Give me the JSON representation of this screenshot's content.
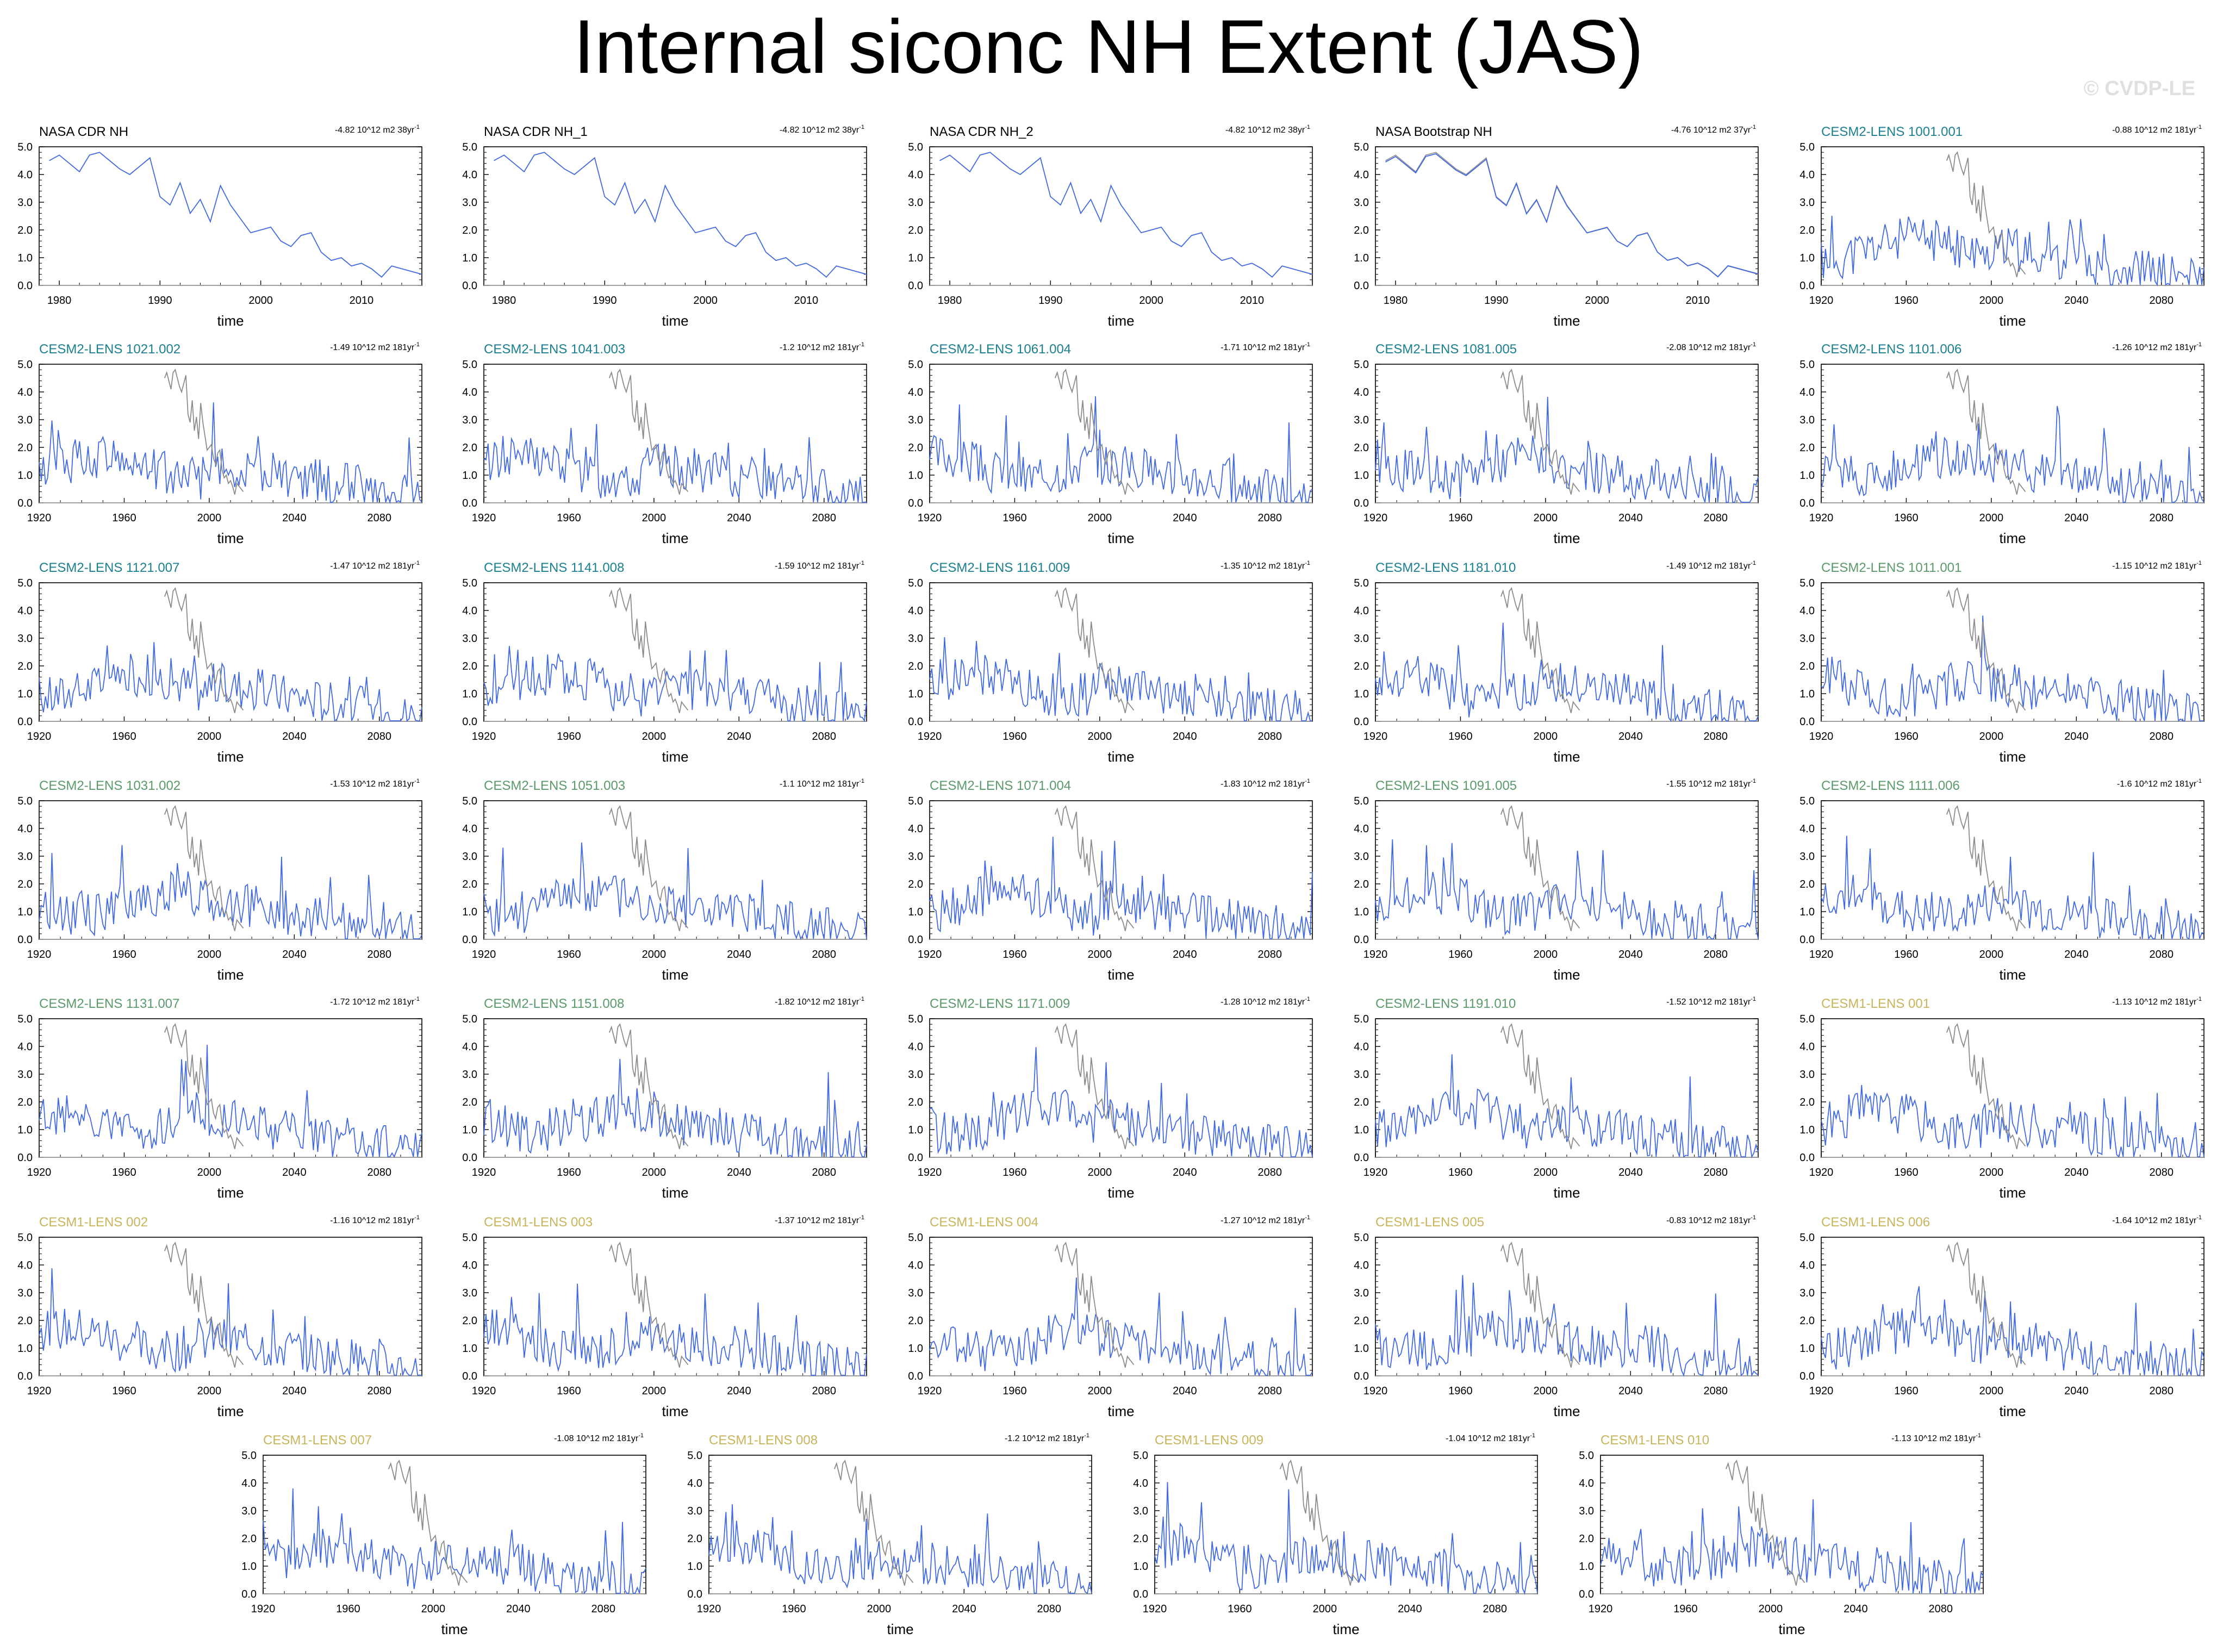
{
  "title": "Internal siconc NH Extent (JAS)",
  "copyright": "© CVDP-LE",
  "colors": {
    "obs_line": "#4169e1",
    "model_line": "#4169e1",
    "overlay_line": "#8c8c8c",
    "zero_line": "#b0b0b0",
    "name_obs": "#000000",
    "name_cesm2_a": "#1a7f8f",
    "name_cesm2_b": "#5a9a6a",
    "name_cesm1": "#c8b45a"
  },
  "chart_data": [
    {
      "type": "line",
      "name": "NASA CDR NH",
      "trend": "-4.82 10^12 m2 38yr",
      "trend_sup": "-1",
      "xlabel": "time",
      "xticks": [
        "1980",
        "1990",
        "2000",
        "2010"
      ],
      "xlim": [
        1978,
        2016
      ],
      "yticks": [
        "0.0",
        "1.0",
        "2.0",
        "3.0",
        "4.0",
        "5.0"
      ],
      "ylim": [
        0,
        5
      ],
      "period": "obs",
      "seed": 1
    },
    {
      "type": "line",
      "name": "NASA CDR NH_1",
      "trend": "-4.82 10^12 m2 38yr",
      "trend_sup": "-1",
      "xlabel": "time",
      "xticks": [
        "1980",
        "1990",
        "2000",
        "2010"
      ],
      "xlim": [
        1978,
        2016
      ],
      "yticks": [
        "0.0",
        "1.0",
        "2.0",
        "3.0",
        "4.0",
        "5.0"
      ],
      "ylim": [
        0,
        5
      ],
      "period": "obs",
      "seed": 1
    },
    {
      "type": "line",
      "name": "NASA CDR NH_2",
      "trend": "-4.82 10^12 m2 38yr",
      "trend_sup": "-1",
      "xlabel": "time",
      "xticks": [
        "1980",
        "1990",
        "2000",
        "2010"
      ],
      "xlim": [
        1978,
        2016
      ],
      "yticks": [
        "0.0",
        "1.0",
        "2.0",
        "3.0",
        "4.0",
        "5.0"
      ],
      "ylim": [
        0,
        5
      ],
      "period": "obs",
      "seed": 1
    },
    {
      "type": "line",
      "name": "NASA Bootstrap NH",
      "trend": "-4.76 10^12 m2 37yr",
      "trend_sup": "-1",
      "xlabel": "time",
      "xticks": [
        "1980",
        "1990",
        "2000",
        "2010"
      ],
      "xlim": [
        1978,
        2016
      ],
      "yticks": [
        "0.0",
        "1.0",
        "2.0",
        "3.0",
        "4.0",
        "5.0"
      ],
      "ylim": [
        0,
        5
      ],
      "period": "obs",
      "seed": 2
    },
    {
      "type": "line",
      "name": "CESM2-LENS 1001.001",
      "trend": "-0.88 10^12 m2 181yr",
      "trend_sup": "-1",
      "group": "cesm2a",
      "seed": 11
    },
    {
      "type": "line",
      "name": "CESM2-LENS 1021.002",
      "trend": "-1.49 10^12 m2 181yr",
      "trend_sup": "-1",
      "group": "cesm2a",
      "seed": 12
    },
    {
      "type": "line",
      "name": "CESM2-LENS 1041.003",
      "trend": "-1.2 10^12 m2 181yr",
      "trend_sup": "-1",
      "group": "cesm2a",
      "seed": 13
    },
    {
      "type": "line",
      "name": "CESM2-LENS 1061.004",
      "trend": "-1.71 10^12 m2 181yr",
      "trend_sup": "-1",
      "group": "cesm2a",
      "seed": 14
    },
    {
      "type": "line",
      "name": "CESM2-LENS 1081.005",
      "trend": "-2.08 10^12 m2 181yr",
      "trend_sup": "-1",
      "group": "cesm2a",
      "seed": 15
    },
    {
      "type": "line",
      "name": "CESM2-LENS 1101.006",
      "trend": "-1.26 10^12 m2 181yr",
      "trend_sup": "-1",
      "group": "cesm2a",
      "seed": 16
    },
    {
      "type": "line",
      "name": "CESM2-LENS 1121.007",
      "trend": "-1.47 10^12 m2 181yr",
      "trend_sup": "-1",
      "group": "cesm2a",
      "seed": 17
    },
    {
      "type": "line",
      "name": "CESM2-LENS 1141.008",
      "trend": "-1.59 10^12 m2 181yr",
      "trend_sup": "-1",
      "group": "cesm2a",
      "seed": 18
    },
    {
      "type": "line",
      "name": "CESM2-LENS 1161.009",
      "trend": "-1.35 10^12 m2 181yr",
      "trend_sup": "-1",
      "group": "cesm2a",
      "seed": 19
    },
    {
      "type": "line",
      "name": "CESM2-LENS 1181.010",
      "trend": "-1.49 10^12 m2 181yr",
      "trend_sup": "-1",
      "group": "cesm2a",
      "seed": 20
    },
    {
      "type": "line",
      "name": "CESM2-LENS 1011.001",
      "trend": "-1.15 10^12 m2 181yr",
      "trend_sup": "-1",
      "group": "cesm2b",
      "seed": 21
    },
    {
      "type": "line",
      "name": "CESM2-LENS 1031.002",
      "trend": "-1.53 10^12 m2 181yr",
      "trend_sup": "-1",
      "group": "cesm2b",
      "seed": 22
    },
    {
      "type": "line",
      "name": "CESM2-LENS 1051.003",
      "trend": "-1.1 10^12 m2 181yr",
      "trend_sup": "-1",
      "group": "cesm2b",
      "seed": 23
    },
    {
      "type": "line",
      "name": "CESM2-LENS 1071.004",
      "trend": "-1.83 10^12 m2 181yr",
      "trend_sup": "-1",
      "group": "cesm2b",
      "seed": 24
    },
    {
      "type": "line",
      "name": "CESM2-LENS 1091.005",
      "trend": "-1.55 10^12 m2 181yr",
      "trend_sup": "-1",
      "group": "cesm2b",
      "seed": 25
    },
    {
      "type": "line",
      "name": "CESM2-LENS 1111.006",
      "trend": "-1.6 10^12 m2 181yr",
      "trend_sup": "-1",
      "group": "cesm2b",
      "seed": 26
    },
    {
      "type": "line",
      "name": "CESM2-LENS 1131.007",
      "trend": "-1.72 10^12 m2 181yr",
      "trend_sup": "-1",
      "group": "cesm2b",
      "seed": 27
    },
    {
      "type": "line",
      "name": "CESM2-LENS 1151.008",
      "trend": "-1.82 10^12 m2 181yr",
      "trend_sup": "-1",
      "group": "cesm2b",
      "seed": 28
    },
    {
      "type": "line",
      "name": "CESM2-LENS 1171.009",
      "trend": "-1.28 10^12 m2 181yr",
      "trend_sup": "-1",
      "group": "cesm2b",
      "seed": 29
    },
    {
      "type": "line",
      "name": "CESM2-LENS 1191.010",
      "trend": "-1.52 10^12 m2 181yr",
      "trend_sup": "-1",
      "group": "cesm2b",
      "seed": 30
    },
    {
      "type": "line",
      "name": "CESM1-LENS 001",
      "trend": "-1.13 10^12 m2 181yr",
      "trend_sup": "-1",
      "group": "cesm1",
      "seed": 31
    },
    {
      "type": "line",
      "name": "CESM1-LENS 002",
      "trend": "-1.16 10^12 m2 181yr",
      "trend_sup": "-1",
      "group": "cesm1",
      "seed": 32
    },
    {
      "type": "line",
      "name": "CESM1-LENS 003",
      "trend": "-1.37 10^12 m2 181yr",
      "trend_sup": "-1",
      "group": "cesm1",
      "seed": 33
    },
    {
      "type": "line",
      "name": "CESM1-LENS 004",
      "trend": "-1.27 10^12 m2 181yr",
      "trend_sup": "-1",
      "group": "cesm1",
      "seed": 34
    },
    {
      "type": "line",
      "name": "CESM1-LENS 005",
      "trend": "-0.83 10^12 m2 181yr",
      "trend_sup": "-1",
      "group": "cesm1",
      "seed": 35
    },
    {
      "type": "line",
      "name": "CESM1-LENS 006",
      "trend": "-1.64 10^12 m2 181yr",
      "trend_sup": "-1",
      "group": "cesm1",
      "seed": 36
    },
    {
      "type": "line",
      "name": "CESM1-LENS 007",
      "trend": "-1.08 10^12 m2 181yr",
      "trend_sup": "-1",
      "group": "cesm1",
      "seed": 37
    },
    {
      "type": "line",
      "name": "CESM1-LENS 008",
      "trend": "-1.2 10^12 m2 181yr",
      "trend_sup": "-1",
      "group": "cesm1",
      "seed": 38
    },
    {
      "type": "line",
      "name": "CESM1-LENS 009",
      "trend": "-1.04 10^12 m2 181yr",
      "trend_sup": "-1",
      "group": "cesm1",
      "seed": 39
    },
    {
      "type": "line",
      "name": "CESM1-LENS 010",
      "trend": "-1.13 10^12 m2 181yr",
      "trend_sup": "-1",
      "group": "cesm1",
      "seed": 40
    }
  ],
  "model_axes": {
    "xlabel": "time",
    "xticks": [
      "1920",
      "1960",
      "2000",
      "2040",
      "2080"
    ],
    "xlim": [
      1920,
      2100
    ],
    "yticks": [
      "0.0",
      "1.0",
      "2.0",
      "3.0",
      "4.0",
      "5.0"
    ],
    "ylim": [
      0,
      5
    ]
  },
  "obs_series": {
    "years": [
      1979,
      1980,
      1981,
      1982,
      1983,
      1984,
      1985,
      1986,
      1987,
      1988,
      1989,
      1990,
      1991,
      1992,
      1993,
      1994,
      1995,
      1996,
      1997,
      1998,
      1999,
      2000,
      2001,
      2002,
      2003,
      2004,
      2005,
      2006,
      2007,
      2008,
      2009,
      2010,
      2011,
      2012,
      2013,
      2014,
      2015,
      2016
    ],
    "values": [
      4.5,
      4.7,
      4.4,
      4.1,
      4.7,
      4.8,
      4.5,
      4.2,
      4.0,
      4.3,
      4.6,
      3.2,
      2.9,
      3.7,
      2.6,
      3.1,
      2.3,
      3.6,
      2.9,
      2.4,
      1.9,
      2.0,
      2.1,
      1.6,
      1.4,
      1.8,
      1.9,
      1.2,
      0.9,
      1.0,
      0.7,
      0.8,
      0.6,
      0.3,
      0.7,
      0.6,
      0.5,
      0.4
    ]
  }
}
